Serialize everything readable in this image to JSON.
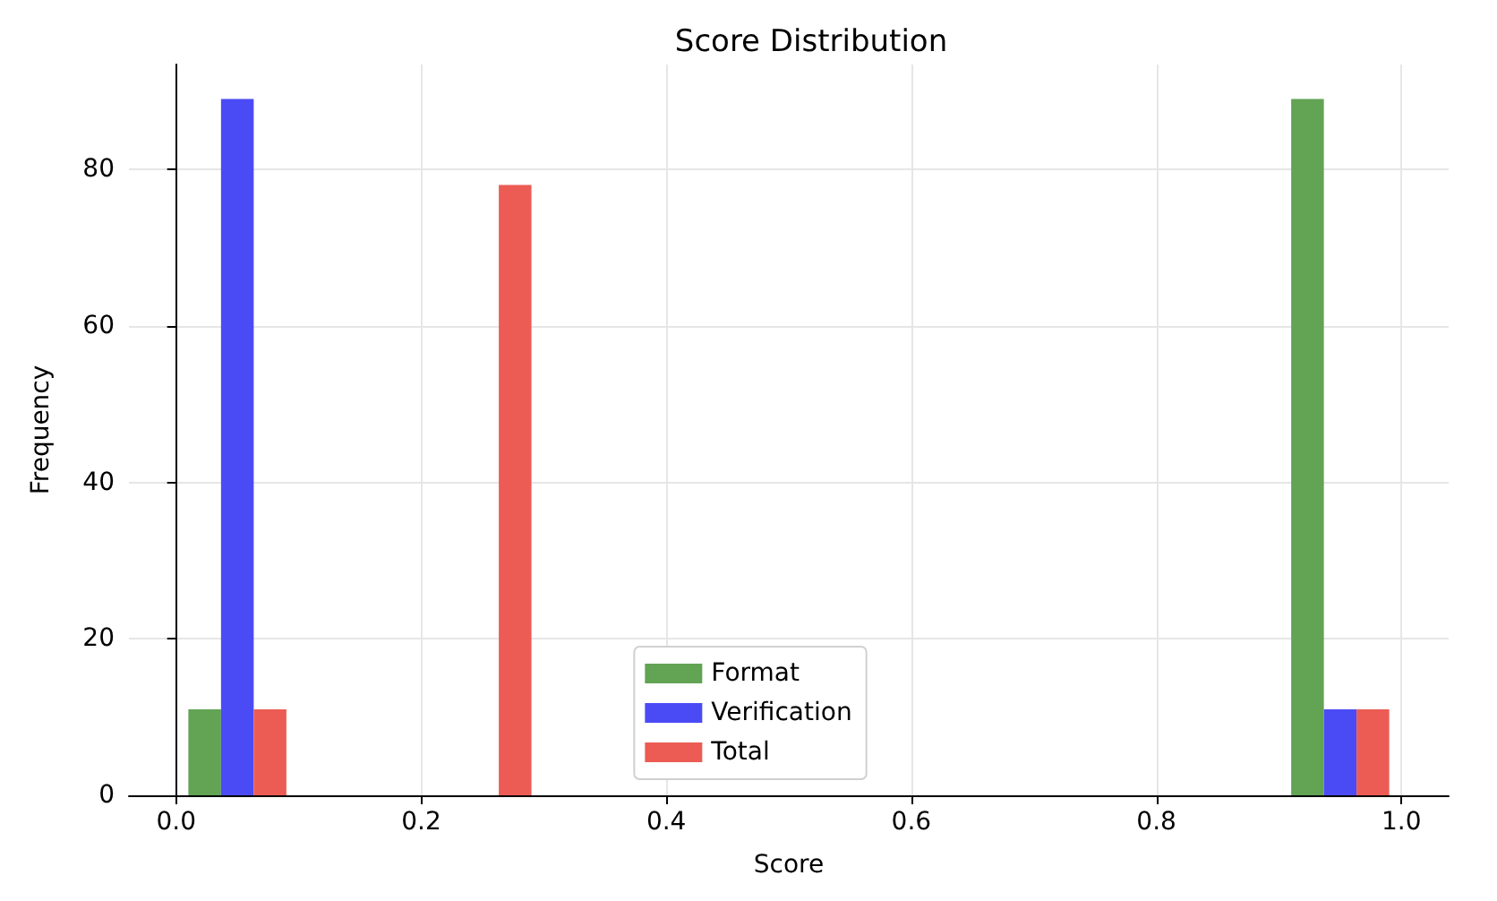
{
  "chart_data": {
    "type": "histogram",
    "title": "Score Distribution",
    "xlabel": "Score",
    "ylabel": "Frequency",
    "bins": [
      0,
      0.1,
      0.2,
      0.3,
      0.4,
      0.5,
      0.6,
      0.7,
      0.8,
      0.9,
      1.0
    ],
    "series": [
      {
        "name": "Format",
        "color": "#62a354",
        "values": [
          11,
          0,
          0,
          0,
          0,
          0,
          0,
          0,
          0,
          89
        ]
      },
      {
        "name": "Verification",
        "color": "#4b4bf5",
        "values": [
          89,
          0,
          0,
          0,
          0,
          0,
          0,
          0,
          0,
          11
        ]
      },
      {
        "name": "Total",
        "color": "#ec5c54",
        "values": [
          11,
          0,
          78,
          0,
          0,
          0,
          0,
          0,
          0,
          11
        ]
      }
    ],
    "xlim": [
      -0.0385,
      1.0385
    ],
    "ylim": [
      0,
      93.4
    ],
    "xticks": [
      {
        "value": 0,
        "label": "0.0"
      },
      {
        "value": 0.2,
        "label": "0.2"
      },
      {
        "value": 0.4,
        "label": "0.4"
      },
      {
        "value": 0.6,
        "label": "0.6"
      },
      {
        "value": 0.8,
        "label": "0.8"
      },
      {
        "value": 1.0,
        "label": "1.0"
      }
    ],
    "yticks": [
      0,
      20,
      40,
      60,
      80
    ],
    "grid": true,
    "legend": "bottom"
  }
}
